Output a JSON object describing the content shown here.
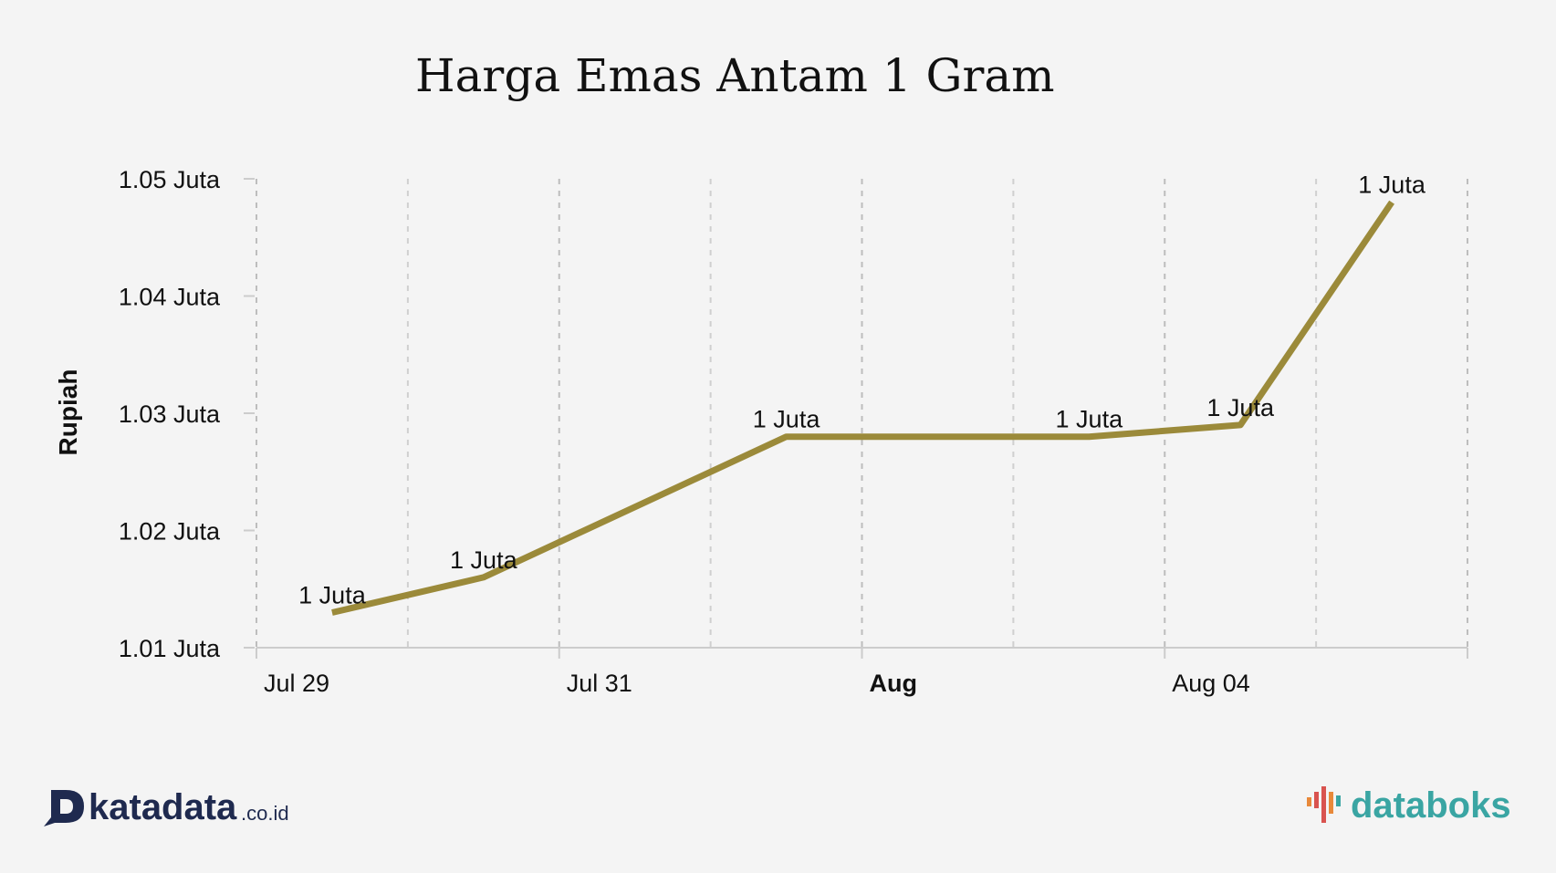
{
  "colors": {
    "background": "#f4f4f4",
    "series": "#9b8a3a",
    "katadata": "#1f2a4f",
    "databoks_text": "#3aa5a3",
    "databoks_mark": "#d9534f"
  },
  "chart_data": {
    "type": "line",
    "title": "Harga Emas Antam 1 Gram",
    "xlabel": "",
    "ylabel": "Rupiah",
    "x_ticks": [
      {
        "label": "Jul 29",
        "bold": false
      },
      {
        "label": "Jul 31",
        "bold": false
      },
      {
        "label": "Aug",
        "bold": true
      },
      {
        "label": "Aug 04",
        "bold": false
      }
    ],
    "y_ticks": [
      "1.01 Juta",
      "1.02 Juta",
      "1.03 Juta",
      "1.04 Juta",
      "1.05 Juta"
    ],
    "ylim": [
      1010000,
      1050000
    ],
    "grid": true,
    "legend": "none",
    "series": [
      {
        "points": [
          {
            "x": "2024-07-29",
            "y": 1013000,
            "label": "1 Juta"
          },
          {
            "x": "2024-07-30",
            "y": 1016000,
            "label": "1 Juta"
          },
          {
            "x": "2024-08-01",
            "y": 1028000,
            "label": "1 Juta"
          },
          {
            "x": "2024-08-03",
            "y": 1028000,
            "label": "1 Juta"
          },
          {
            "x": "2024-08-04",
            "y": 1029000,
            "label": "1 Juta"
          },
          {
            "x": "2024-08-05",
            "y": 1048000,
            "label": "1 Juta"
          }
        ]
      }
    ]
  },
  "logos": {
    "katadata": {
      "name": "katadata",
      "suffix": ".co.id",
      "icon": "katadata-d-icon"
    },
    "databoks": {
      "name": "databoks",
      "icon": "databoks-bars-icon"
    }
  }
}
